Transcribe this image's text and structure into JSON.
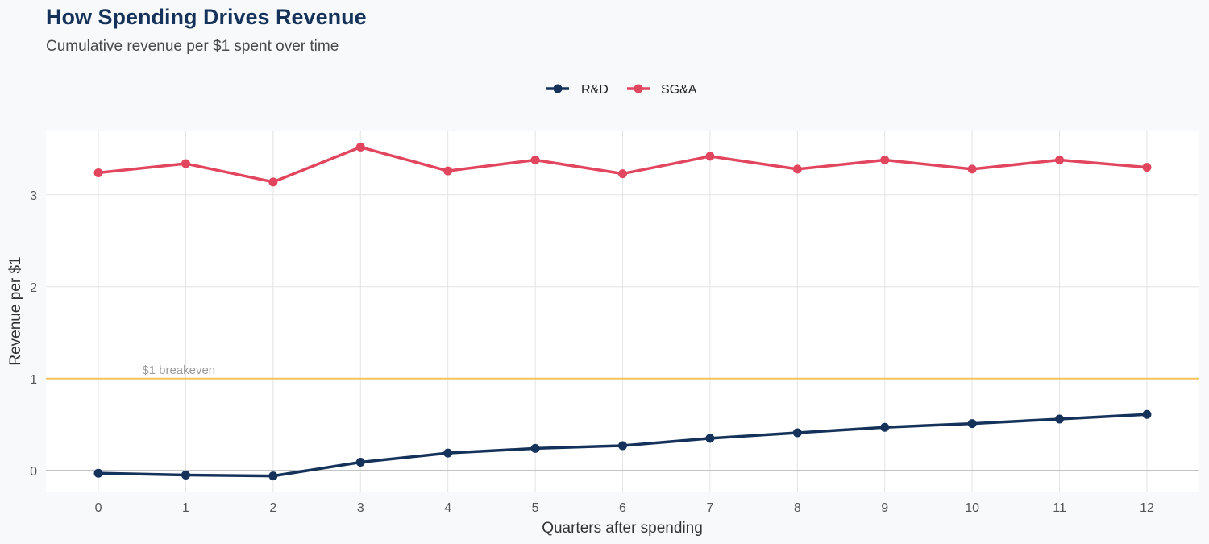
{
  "chart_data": {
    "type": "line",
    "title": "How Spending Drives Revenue",
    "subtitle": "Cumulative revenue per $1 spent over time",
    "xlabel": "Quarters after spending",
    "ylabel": "Revenue per $1",
    "x": [
      0,
      1,
      2,
      3,
      4,
      5,
      6,
      7,
      8,
      9,
      10,
      11,
      12
    ],
    "xlim": [
      -0.6,
      12.6
    ],
    "ylim": [
      -0.23,
      3.7
    ],
    "xticks": [
      0,
      1,
      2,
      3,
      4,
      5,
      6,
      7,
      8,
      9,
      10,
      11,
      12
    ],
    "yticks": [
      0,
      1,
      2,
      3
    ],
    "grid": true,
    "legend_position": "top-center",
    "series": [
      {
        "name": "R&D",
        "color": "#14325a",
        "values": [
          -0.03,
          -0.05,
          -0.06,
          0.09,
          0.19,
          0.24,
          0.27,
          0.35,
          0.41,
          0.47,
          0.51,
          0.56,
          0.61
        ]
      },
      {
        "name": "SG&A",
        "color": "#e2465f",
        "values": [
          3.24,
          3.34,
          3.14,
          3.52,
          3.26,
          3.38,
          3.23,
          3.42,
          3.28,
          3.38,
          3.28,
          3.38,
          3.3
        ]
      }
    ],
    "reference_line": {
      "y": 1,
      "label": "$1 breakeven",
      "color": "#f5c45e"
    }
  }
}
